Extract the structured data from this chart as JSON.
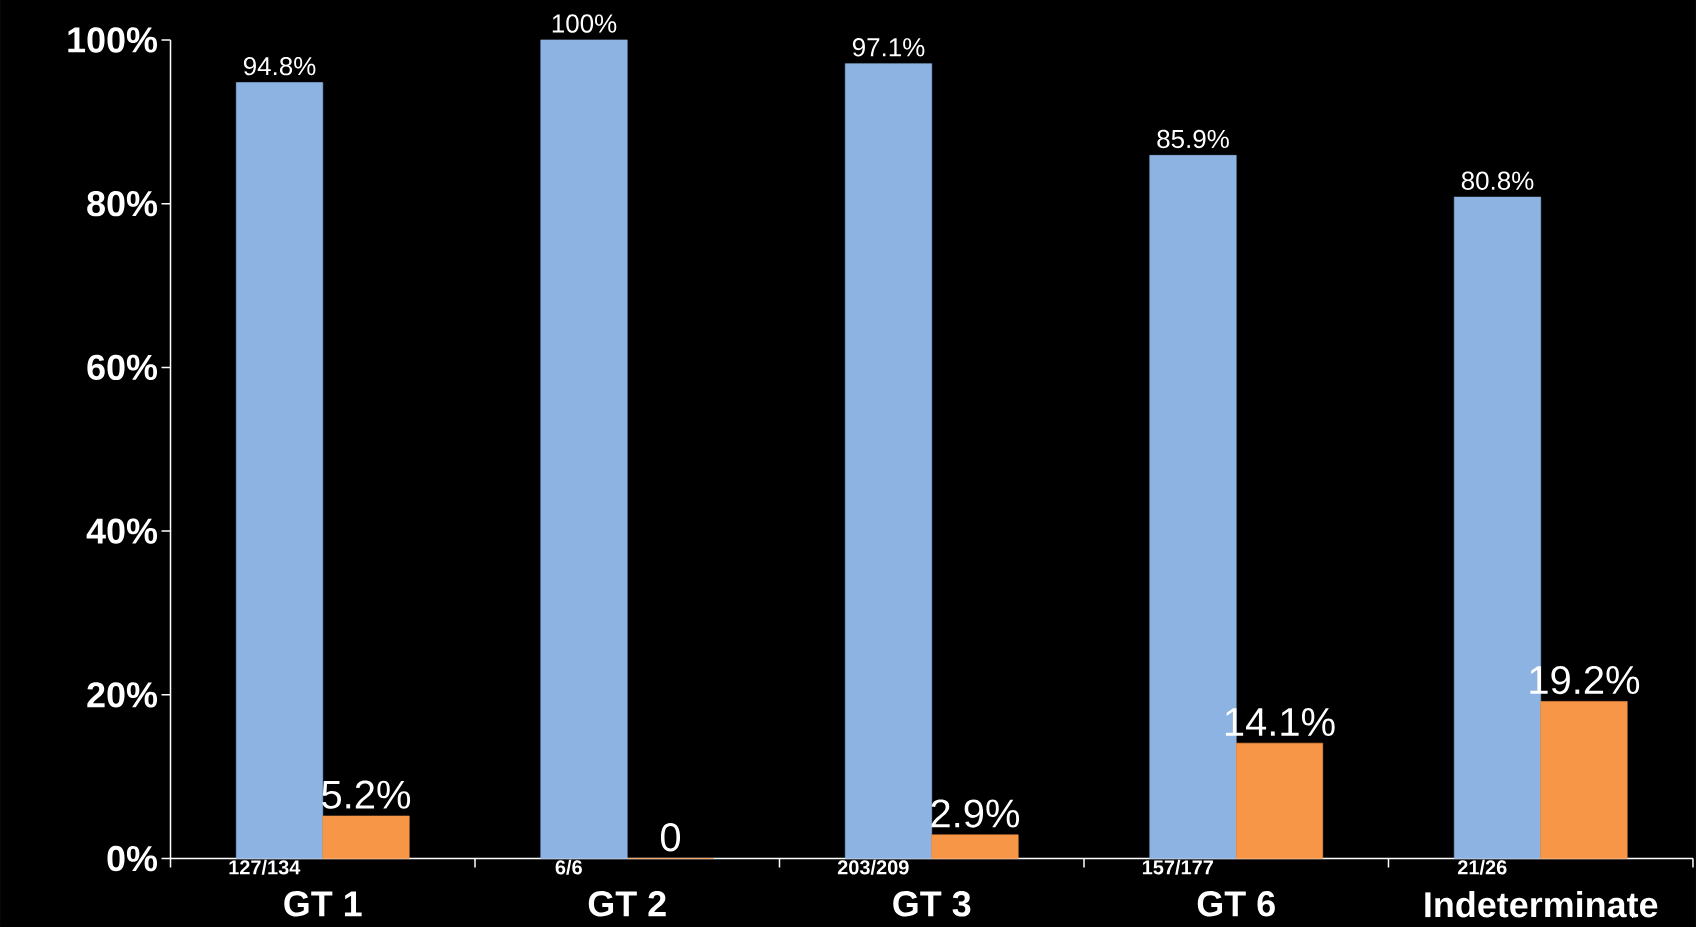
{
  "chart_data": {
    "type": "bar",
    "categories": [
      "GT 1",
      "GT 2",
      "GT 3",
      "GT 6",
      "Indeterminate"
    ],
    "series": [
      {
        "color": "#8db3e2",
        "values": [
          94.8,
          100,
          97.1,
          85.9,
          80.8
        ],
        "value_labels": [
          "94.8%",
          "100%",
          "97.1%",
          "85.9%",
          "80.8%"
        ]
      },
      {
        "color": "#f79646",
        "values": [
          5.2,
          0,
          2.9,
          14.1,
          19.2
        ],
        "value_labels": [
          "5.2%",
          "0",
          "2.9%",
          "14.1%",
          "19.2%"
        ]
      }
    ],
    "ylim": [
      0,
      100
    ],
    "yticks": [
      {
        "value": 0,
        "label": "0%"
      },
      {
        "value": 20,
        "label": "20%"
      },
      {
        "value": 40,
        "label": "40%"
      },
      {
        "value": 60,
        "label": "60%"
      },
      {
        "value": 80,
        "label": "80%"
      },
      {
        "value": 100,
        "label": "100%"
      }
    ],
    "annotations": [
      {
        "text": "127/134",
        "x": "GT 1",
        "y": 0
      },
      {
        "text": "6/6",
        "x": "GT 2",
        "y": 0
      },
      {
        "text": "203/209",
        "x": "GT 3",
        "y": 0
      },
      {
        "text": "157/177",
        "x": "GT 6",
        "y": 0
      },
      {
        "text": "21/26",
        "x": "Indeterminate",
        "y": 0
      }
    ]
  }
}
